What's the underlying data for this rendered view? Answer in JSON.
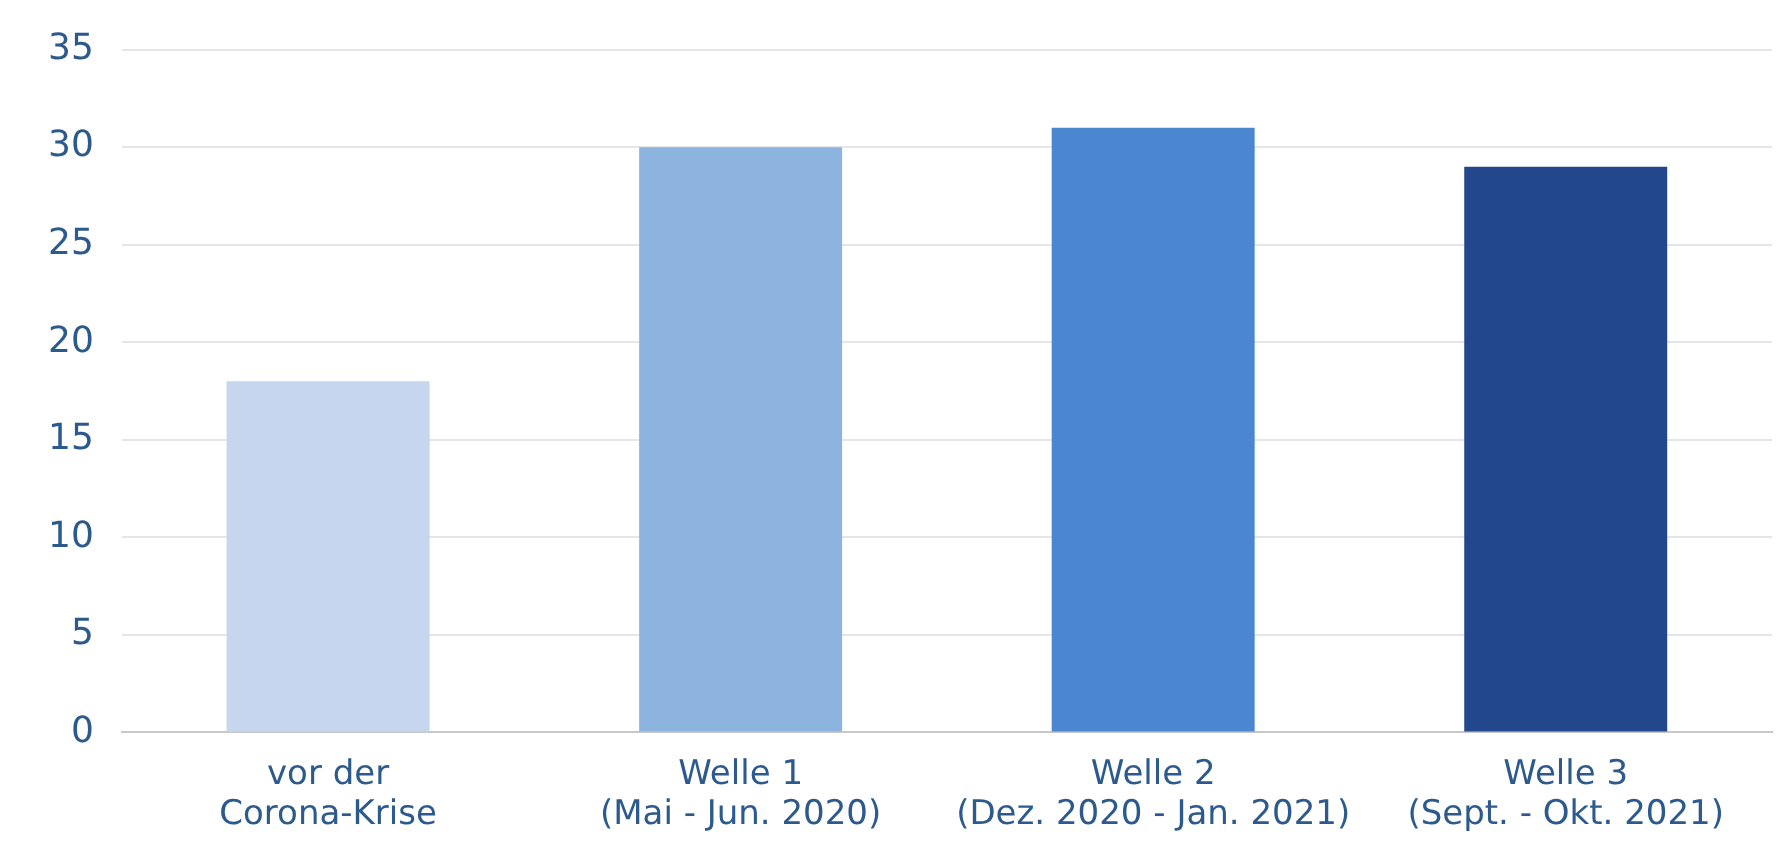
{
  "chart_data": {
    "type": "bar",
    "categories": [
      "vor der\nCorona-Krise",
      "Welle 1\n(Mai - Jun. 2020)",
      "Welle 2\n(Dez. 2020 - Jan. 2021)",
      "Welle 3\n(Sept. - Okt. 2021)"
    ],
    "values": [
      18,
      30,
      31,
      29
    ],
    "colors": [
      "#c5d6ee",
      "#8db3df",
      "#4b87d1",
      "#22478d"
    ],
    "ylim": [
      0,
      35
    ],
    "yticks": [
      0,
      5,
      10,
      15,
      20,
      25,
      30,
      35
    ],
    "grid": "y",
    "legend": false
  }
}
